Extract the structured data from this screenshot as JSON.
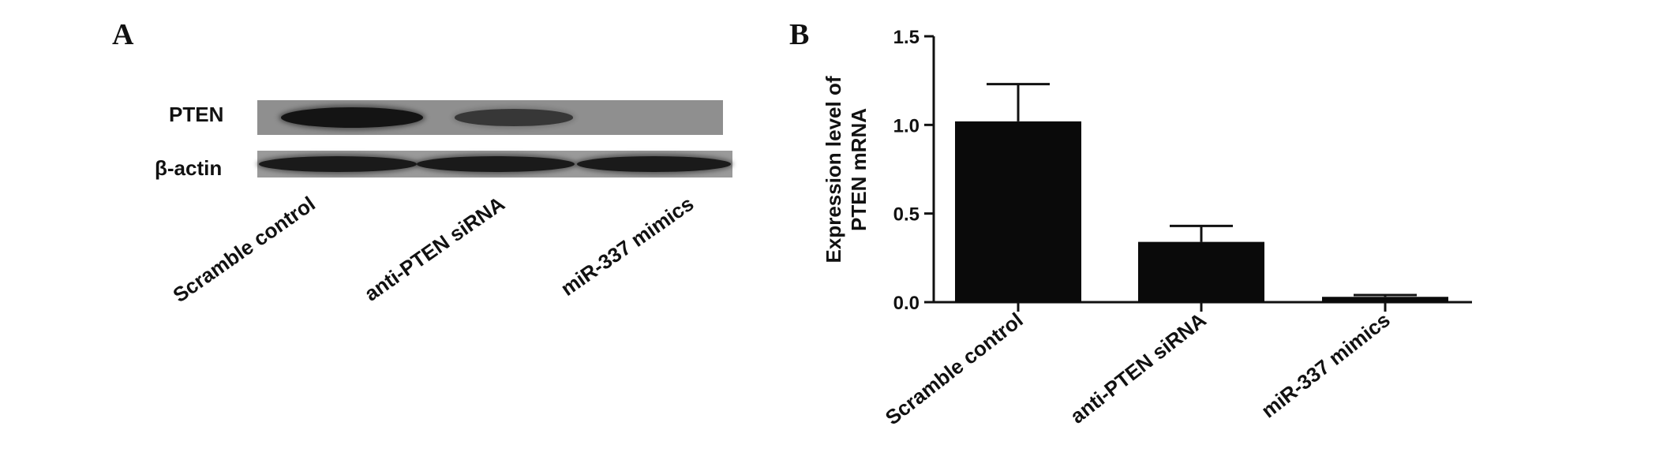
{
  "panels": {
    "a_letter": "A",
    "b_letter": "B"
  },
  "blot": {
    "rows": [
      {
        "label": "PTEN",
        "band_intensity": [
          1.0,
          0.55,
          0.0
        ]
      },
      {
        "label": "β-actin",
        "band_intensity": [
          1.0,
          1.0,
          1.0
        ]
      }
    ],
    "lanes": [
      "Scramble control",
      "anti-PTEN siRNA",
      "miR-337 mimics"
    ]
  },
  "chart_data": {
    "type": "bar",
    "categories": [
      "Scramble control",
      "anti-PTEN siRNA",
      "miR-337 mimics"
    ],
    "values": [
      1.02,
      0.34,
      0.03
    ],
    "errors": [
      0.21,
      0.09,
      0.01
    ],
    "ylabel": "Expression level of\nPTEN mRNA",
    "ylabel_lines": [
      "Expression level of",
      "PTEN mRNA"
    ],
    "xlabel": "",
    "ylim": [
      0,
      1.5
    ],
    "yticks": [
      0.0,
      0.5,
      1.0,
      1.5
    ],
    "ytick_labels": [
      "0.0",
      "0.5",
      "1.0",
      "1.5"
    ],
    "bar_color": "#0a0a0a",
    "grid": false
  }
}
